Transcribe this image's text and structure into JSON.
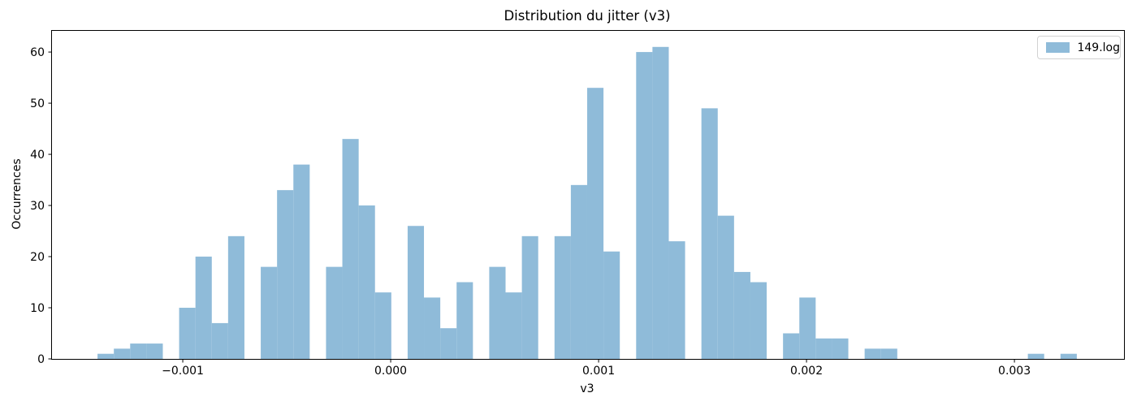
{
  "figure": {
    "title": "Distribution du jitter (v3)",
    "xlabel": "v3",
    "ylabel": "Occurrences",
    "legend": {
      "label": "149.log",
      "swatch_color": "#8fbbd9",
      "position": "upper right"
    }
  },
  "chart_data": {
    "type": "bar",
    "subtype": "histogram",
    "title": "Distribution du jitter (v3)",
    "xlabel": "v3",
    "ylabel": "Occurrences",
    "grid": false,
    "legend_position": "upper right",
    "bar_color": "#8fbbd9",
    "background_color": "#ffffff",
    "spine_color": "#000000",
    "xlim": [
      -0.001633,
      0.003527
    ],
    "ylim": [
      0,
      64.3
    ],
    "xticks": [
      -0.001,
      0.0,
      0.001,
      0.002,
      0.003
    ],
    "xtick_labels": [
      "−0.001",
      "0.000",
      "0.001",
      "0.002",
      "0.003"
    ],
    "yticks": [
      0,
      10,
      20,
      30,
      40,
      50,
      60
    ],
    "ytick_labels": [
      "0",
      "10",
      "20",
      "30",
      "40",
      "50",
      "60"
    ],
    "series": [
      {
        "name": "149.log",
        "bin_start": -0.00141,
        "bin_width": 7.85e-05,
        "counts": [
          1,
          2,
          3,
          3,
          0,
          10,
          20,
          7,
          24,
          0,
          18,
          33,
          38,
          0,
          18,
          43,
          30,
          13,
          0,
          26,
          12,
          6,
          15,
          0,
          18,
          13,
          24,
          0,
          24,
          34,
          53,
          21,
          0,
          60,
          61,
          23,
          0,
          49,
          28,
          17,
          15,
          0,
          5,
          12,
          4,
          4,
          0,
          2,
          2,
          0,
          0,
          0,
          0,
          0,
          0,
          0,
          0,
          1,
          0,
          1
        ]
      }
    ]
  }
}
